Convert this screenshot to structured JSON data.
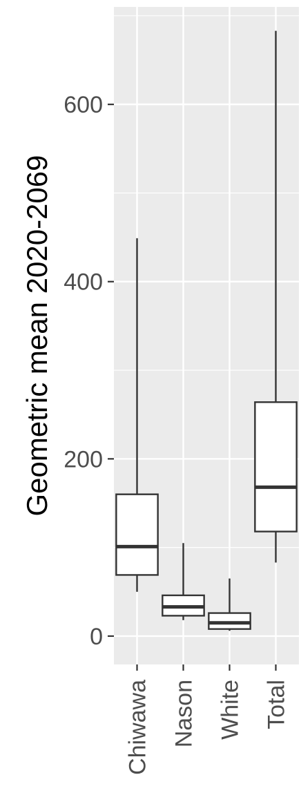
{
  "chart_data": {
    "type": "boxplot",
    "title": "",
    "xlabel": "",
    "ylabel": "Geometric mean 2020-2069",
    "ylim": [
      -32,
      710
    ],
    "y_ticks": [
      0,
      200,
      400,
      600
    ],
    "y_tick_labels": [
      "0",
      "200",
      "400",
      "600"
    ],
    "grid": true,
    "legend": "none",
    "categories": [
      "Chiwawa",
      "Nason",
      "White",
      "Total"
    ],
    "boxes": [
      {
        "category": "Chiwawa",
        "whisker_low": 50,
        "q1": 69,
        "median": 101,
        "q3": 160,
        "whisker_high": 449
      },
      {
        "category": "Nason",
        "whisker_low": 18,
        "q1": 23,
        "median": 33,
        "q3": 46,
        "whisker_high": 105
      },
      {
        "category": "White",
        "whisker_low": 6,
        "q1": 8,
        "median": 15,
        "q3": 26,
        "whisker_high": 65
      },
      {
        "category": "Total",
        "whisker_low": 83,
        "q1": 118,
        "median": 168,
        "q3": 264,
        "whisker_high": 683
      }
    ],
    "colors": {
      "panel_background": "#ebebeb",
      "grid": "#ffffff",
      "box_fill": "#ffffff",
      "box_stroke": "#333333",
      "tick_text": "#4d4d4d",
      "axis_title": "#000000"
    }
  }
}
